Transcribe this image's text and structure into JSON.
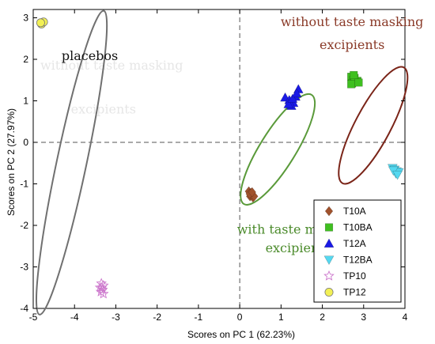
{
  "chart_data": {
    "type": "scatter",
    "xlabel": "Scores on PC 1 (62.23%)",
    "ylabel": "Scores on PC 2 (27.97%)",
    "xlim": [
      -5,
      4
    ],
    "ylim": [
      -4,
      3.2
    ],
    "xticks": [
      -5,
      -4,
      -3,
      -2,
      -1,
      0,
      1,
      2,
      3,
      4
    ],
    "yticks": [
      -4,
      -3,
      -2,
      -1,
      0,
      1,
      2,
      3
    ],
    "grid": false,
    "legend_position": "bottom-right",
    "series": [
      {
        "name": "T10A",
        "marker": "diamond",
        "color": "#a0522d",
        "points": [
          [
            0.22,
            -1.18
          ],
          [
            0.27,
            -1.22
          ],
          [
            0.3,
            -1.27
          ],
          [
            0.25,
            -1.3
          ],
          [
            0.32,
            -1.33
          ],
          [
            0.28,
            -1.25
          ],
          [
            0.35,
            -1.3
          ],
          [
            0.24,
            -1.24
          ],
          [
            0.3,
            -1.2
          ]
        ]
      },
      {
        "name": "T10BA",
        "marker": "square",
        "color": "#3fbf20",
        "points": [
          [
            2.7,
            1.58
          ],
          [
            2.75,
            1.5
          ],
          [
            2.8,
            1.45
          ],
          [
            2.72,
            1.42
          ],
          [
            2.85,
            1.48
          ],
          [
            2.78,
            1.55
          ],
          [
            2.7,
            1.4
          ],
          [
            2.88,
            1.44
          ],
          [
            2.76,
            1.62
          ]
        ]
      },
      {
        "name": "T12A",
        "marker": "triangle-up",
        "color": "#1a1ae6",
        "points": [
          [
            1.1,
            1.08
          ],
          [
            1.2,
            1.02
          ],
          [
            1.3,
            0.95
          ],
          [
            1.25,
            0.88
          ],
          [
            1.35,
            1.1
          ],
          [
            1.42,
            1.28
          ],
          [
            1.18,
            0.92
          ],
          [
            1.28,
            1.05
          ],
          [
            1.38,
            1.18
          ]
        ]
      },
      {
        "name": "T12BA",
        "marker": "triangle-down",
        "color": "#55d8f0",
        "points": [
          [
            3.7,
            -0.62
          ],
          [
            3.75,
            -0.66
          ],
          [
            3.8,
            -0.7
          ],
          [
            3.78,
            -0.75
          ],
          [
            3.85,
            -0.72
          ],
          [
            3.72,
            -0.68
          ],
          [
            3.82,
            -0.78
          ]
        ]
      },
      {
        "name": "TP10",
        "marker": "star",
        "color": "#cc77cc",
        "points": [
          [
            -3.35,
            -3.4
          ],
          [
            -3.3,
            -3.45
          ],
          [
            -3.38,
            -3.5
          ],
          [
            -3.32,
            -3.55
          ],
          [
            -3.36,
            -3.6
          ],
          [
            -3.3,
            -3.65
          ],
          [
            -3.34,
            -3.5
          ]
        ]
      },
      {
        "name": "TP12",
        "marker": "circle",
        "color": "#f2f055",
        "points": [
          [
            -4.8,
            2.85
          ],
          [
            -4.75,
            2.9
          ],
          [
            -4.82,
            2.88
          ]
        ]
      }
    ],
    "ellipses": [
      {
        "cx": -4.07,
        "cy": -0.49,
        "rx": 3.74,
        "ry": 0.36,
        "angle_deg": 78,
        "color": "#707070"
      },
      {
        "cx": 0.92,
        "cy": -0.17,
        "rx": 1.55,
        "ry": 0.43,
        "angle_deg": 58,
        "color": "#5a9a3a"
      },
      {
        "cx": 3.23,
        "cy": 0.41,
        "rx": 1.58,
        "ry": 0.43,
        "angle_deg": 62,
        "color": "#7a2418"
      }
    ],
    "annotations": [
      {
        "id": "placebos",
        "text": "placebos",
        "x": -3.63,
        "y": 1.98,
        "color": "#111111"
      },
      {
        "id": "without1",
        "text": "without taste masking",
        "x": 2.72,
        "y": 2.8,
        "color": "#8a3a28"
      },
      {
        "id": "without2",
        "text": "excipients",
        "x": 2.72,
        "y": 2.25,
        "color": "#8a3a28"
      },
      {
        "id": "with1",
        "text": "with taste masking",
        "x": 1.41,
        "y": -2.2,
        "color": "#4a8a2a"
      },
      {
        "id": "with2",
        "text": "excipients",
        "x": 1.41,
        "y": -2.65,
        "color": "#4a8a2a"
      }
    ],
    "faint_annotations": [
      {
        "id": "faint1",
        "text": "without taste masking",
        "x": -3.1,
        "y": 1.75
      },
      {
        "id": "faint2",
        "text": "excipients",
        "x": -3.3,
        "y": 0.7
      }
    ]
  }
}
